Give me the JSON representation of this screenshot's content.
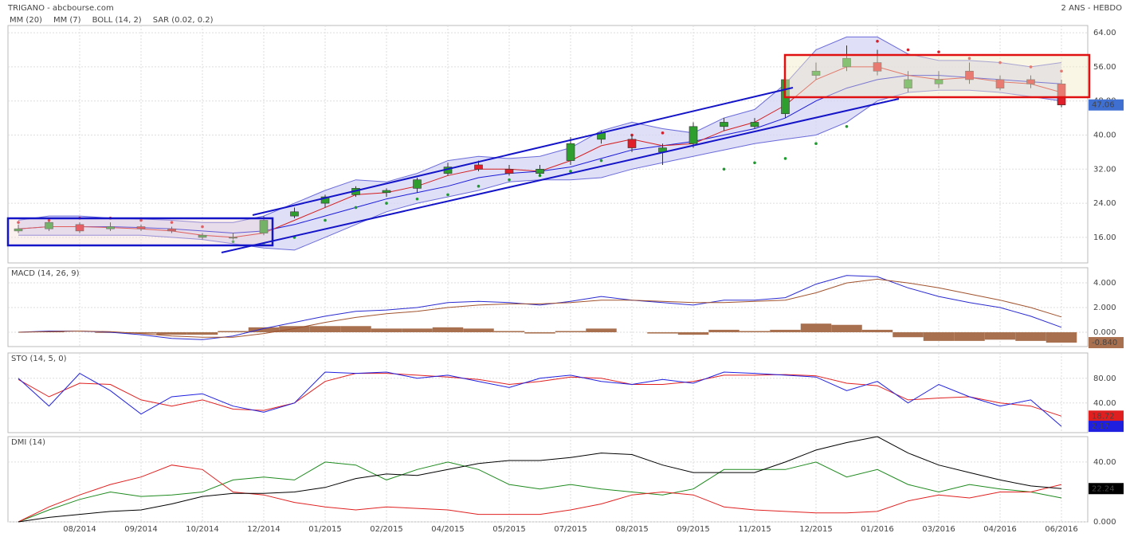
{
  "chart_data": [
    {
      "type": "candlestick",
      "title": "TRIGANO - abcbourse.com",
      "subtitle": "2 ANS - HEBDO",
      "categories": [
        null,
        null,
        "08/2014",
        null,
        "09/2014",
        null,
        "10/2014",
        null,
        "12/2014",
        null,
        "01/2015",
        null,
        "02/2015",
        null,
        "04/2015",
        null,
        "05/2015",
        null,
        "07/2015",
        null,
        "08/2015",
        null,
        "09/2015",
        null,
        "11/2015",
        null,
        "12/2015",
        null,
        "01/2016",
        null,
        "03/2016",
        null,
        "04/2016",
        null,
        "06/2016"
      ],
      "open": [
        17.5,
        18,
        19,
        18,
        18.5,
        18,
        16,
        16,
        17,
        21,
        24,
        26,
        26.5,
        27.5,
        31,
        33,
        32,
        31,
        34,
        39,
        39,
        36,
        38,
        42,
        42,
        45,
        54,
        56,
        57,
        51,
        52,
        55,
        53,
        53,
        52
      ],
      "high": [
        19,
        20.5,
        19.5,
        19.5,
        19,
        18.5,
        17,
        17,
        21,
        23,
        26,
        28,
        27.5,
        30,
        33.5,
        34,
        33,
        33,
        39.5,
        41,
        40,
        38,
        43,
        44,
        44,
        54,
        57,
        61,
        60,
        55,
        55,
        57,
        54,
        54,
        53
      ],
      "low": [
        17,
        17.5,
        17,
        17.5,
        17.5,
        17,
        15.5,
        15.5,
        16.5,
        20.5,
        23,
        25.5,
        25.5,
        26.5,
        30.5,
        31.5,
        30.5,
        30.5,
        33,
        38,
        36,
        33,
        37,
        41,
        41.5,
        44,
        53,
        55,
        54,
        50,
        51,
        52,
        50.5,
        51,
        46.5
      ],
      "close": [
        18,
        19.5,
        17.5,
        18.5,
        18,
        17.5,
        16.5,
        16,
        20,
        22,
        25.5,
        27.5,
        27,
        29.5,
        32.5,
        32,
        31,
        32,
        38,
        40.5,
        37,
        37,
        42,
        43,
        43,
        53,
        55,
        58,
        55,
        53,
        53,
        53,
        51,
        52,
        47.06
      ],
      "up_color": "#2e9e2e",
      "down_color": "#e01e2a",
      "last_label_color": "#3f6fd1",
      "ylim": [
        10,
        65.7
      ],
      "yticks": [
        {
          "value": 64,
          "label": "64.00"
        },
        {
          "value": 56,
          "label": "56.00"
        },
        {
          "value": 48,
          "label": "48.00"
        },
        {
          "value": 40,
          "label": "40.00"
        },
        {
          "value": 32,
          "label": "32.00"
        },
        {
          "value": 24,
          "label": "24.00"
        },
        {
          "value": 16,
          "label": "16.00"
        }
      ],
      "grid": true,
      "series": [
        {
          "name": "MM (20)",
          "kind": "line",
          "color": "#1c1cd6",
          "values": [
            18,
            18.5,
            18.5,
            18.5,
            18.3,
            18,
            17.5,
            17,
            17.5,
            19,
            21,
            23,
            25,
            26.5,
            28,
            30,
            31,
            31.5,
            32.5,
            34.5,
            36.5,
            37.5,
            38.5,
            40,
            41.5,
            44,
            48,
            51,
            53,
            54,
            54,
            53.5,
            53,
            52.5,
            52
          ]
        },
        {
          "name": "MM (7)",
          "kind": "line",
          "color": "#d42020",
          "values": [
            18,
            18.5,
            18.5,
            18.3,
            18,
            17.5,
            16.5,
            16,
            17,
            20,
            23,
            26,
            26.5,
            28,
            30.5,
            32,
            32,
            31.5,
            34,
            37.5,
            39,
            37.5,
            38,
            41,
            43,
            47,
            53,
            56,
            56,
            54,
            53,
            53.5,
            52.5,
            52,
            50
          ]
        },
        {
          "name": "BOLL (14, 2)",
          "kind": "band",
          "color": "#6b6bd9",
          "fill_color": "#d4d4f6",
          "values": [
            20,
            21,
            21,
            20.5,
            20.3,
            20,
            19.5,
            19.5,
            21,
            24,
            27,
            29.5,
            29,
            31,
            34,
            35,
            34.5,
            35,
            37,
            41,
            43,
            41.5,
            40.5,
            44,
            46,
            52,
            60,
            63,
            63,
            59,
            57.5,
            57.5,
            57,
            56,
            57
          ],
          "lower": [
            16.5,
            16.5,
            16.5,
            16.5,
            16.5,
            16,
            15.5,
            14.5,
            13.5,
            13,
            16,
            19,
            22,
            24,
            25.5,
            27,
            29,
            29.5,
            29.5,
            30,
            32,
            33.5,
            35,
            36.5,
            38,
            39,
            40,
            43,
            48,
            50,
            50.5,
            50.5,
            50,
            49,
            48
          ]
        },
        {
          "name": "SAR (0.02, 0.2)",
          "kind": "dots",
          "color": "#d4202a",
          "color_below": "#1f9a30",
          "values": [
            19.5,
            20,
            20.5,
            20.5,
            20,
            19.5,
            18.5,
            15,
            14.5,
            16,
            20,
            23,
            24,
            25,
            26,
            28,
            29.5,
            30.5,
            31.5,
            34,
            40,
            40.5,
            38.5,
            32,
            33.5,
            34.5,
            38,
            42,
            62,
            60,
            59.5,
            58,
            57,
            56,
            55
          ]
        }
      ]
    },
    {
      "type": "line",
      "title": "MACD (14, 26, 9)",
      "title_color": "#1c1cd6",
      "ylim": [
        -1.16,
        5.23
      ],
      "yticks": [
        {
          "value": 4,
          "label": "4.000"
        },
        {
          "value": 2,
          "label": "2.000"
        },
        {
          "value": 0,
          "label": "0.000"
        }
      ],
      "grid": true,
      "series": [
        {
          "kind": "bars",
          "color": "#a8704f",
          "label_last": true,
          "values": [
            0,
            0.05,
            0,
            -0.05,
            -0.1,
            -0.2,
            -0.2,
            0.1,
            0.4,
            0.5,
            0.5,
            0.5,
            0.3,
            0.3,
            0.4,
            0.3,
            0.1,
            -0.1,
            0.1,
            0.3,
            0,
            -0.1,
            -0.2,
            0.2,
            0.1,
            0.2,
            0.7,
            0.6,
            0.2,
            -0.4,
            -0.7,
            -0.7,
            -0.6,
            -0.7,
            -0.84
          ],
          "value_labels": [
            null,
            null,
            null,
            null,
            null,
            null,
            null,
            null,
            null,
            null,
            null,
            null,
            null,
            null,
            null,
            null,
            null,
            null,
            null,
            null,
            null,
            null,
            null,
            null,
            null,
            null,
            null,
            null,
            null,
            null,
            null,
            null,
            null,
            null,
            "-0.840"
          ]
        },
        {
          "kind": "line",
          "color": "#2a2ad0",
          "values": [
            0,
            0.1,
            0.1,
            0,
            -0.2,
            -0.5,
            -0.6,
            -0.3,
            0.3,
            0.8,
            1.3,
            1.7,
            1.8,
            2.0,
            2.4,
            2.5,
            2.4,
            2.2,
            2.5,
            2.9,
            2.6,
            2.4,
            2.2,
            2.6,
            2.6,
            2.8,
            3.9,
            4.6,
            4.5,
            3.6,
            2.9,
            2.4,
            2.0,
            1.3,
            0.4
          ]
        },
        {
          "kind": "line",
          "color": "#a0522d",
          "values": [
            0,
            0.05,
            0.1,
            0.05,
            -0.1,
            -0.3,
            -0.4,
            -0.4,
            -0.1,
            0.3,
            0.8,
            1.2,
            1.5,
            1.7,
            2.0,
            2.2,
            2.3,
            2.3,
            2.4,
            2.6,
            2.6,
            2.5,
            2.4,
            2.4,
            2.5,
            2.6,
            3.2,
            4.0,
            4.3,
            4.0,
            3.6,
            3.1,
            2.6,
            2.0,
            1.24
          ]
        }
      ]
    },
    {
      "type": "line",
      "title": "STO (14, 5, 0)",
      "title_color": "#1c1cd6",
      "ylim": [
        -8,
        121
      ],
      "yticks": [
        {
          "value": 80,
          "label": "80.00"
        },
        {
          "value": 40,
          "label": "40.00"
        }
      ],
      "grid": true,
      "series": [
        {
          "kind": "line",
          "color": "#e02020",
          "label_last": true,
          "values": [
            78,
            50,
            72,
            70,
            45,
            35,
            45,
            30,
            28,
            40,
            75,
            88,
            88,
            85,
            82,
            78,
            70,
            75,
            82,
            80,
            70,
            70,
            75,
            85,
            85,
            86,
            84,
            72,
            68,
            45,
            48,
            50,
            40,
            35,
            18.72
          ]
        },
        {
          "kind": "line",
          "color": "#1f1fe0",
          "label_last": true,
          "values": [
            80,
            35,
            88,
            60,
            22,
            50,
            55,
            35,
            25,
            40,
            90,
            88,
            90,
            80,
            85,
            75,
            65,
            80,
            85,
            75,
            70,
            78,
            72,
            90,
            88,
            85,
            82,
            60,
            75,
            40,
            70,
            50,
            35,
            45,
            2.17
          ]
        }
      ]
    },
    {
      "type": "line",
      "title": "DMI (14)",
      "title_color": "#1e8a1e",
      "ylim": [
        0,
        57
      ],
      "yticks": [
        {
          "value": 40,
          "label": "40.00"
        },
        {
          "value": 0,
          "label": "0.000"
        }
      ],
      "grid": true,
      "series": [
        {
          "kind": "line",
          "color": "#1e8a1e",
          "values": [
            0,
            8,
            15,
            20,
            17,
            18,
            20,
            28,
            30,
            28,
            40,
            38,
            28,
            35,
            40,
            35,
            25,
            22,
            25,
            22,
            20,
            18,
            22,
            35,
            35,
            35,
            40,
            30,
            35,
            25,
            20,
            25,
            22,
            20,
            16
          ]
        },
        {
          "kind": "line",
          "color": "#e02020",
          "values": [
            0,
            10,
            18,
            25,
            30,
            38,
            35,
            20,
            18,
            13,
            10,
            8,
            10,
            9,
            8,
            5,
            5,
            5,
            8,
            12,
            18,
            20,
            18,
            10,
            8,
            7,
            6,
            6,
            7,
            14,
            18,
            16,
            20,
            20,
            25
          ]
        },
        {
          "kind": "line",
          "color": "#000000",
          "label_last": true,
          "values": [
            0,
            3,
            5,
            7,
            8,
            12,
            17,
            19,
            19,
            20,
            23,
            29,
            32,
            31,
            35,
            39,
            41,
            41,
            43,
            46,
            45,
            38,
            33,
            33,
            33,
            40,
            48,
            53,
            57,
            46,
            38,
            33,
            28,
            24,
            22.24
          ]
        }
      ]
    }
  ]
}
